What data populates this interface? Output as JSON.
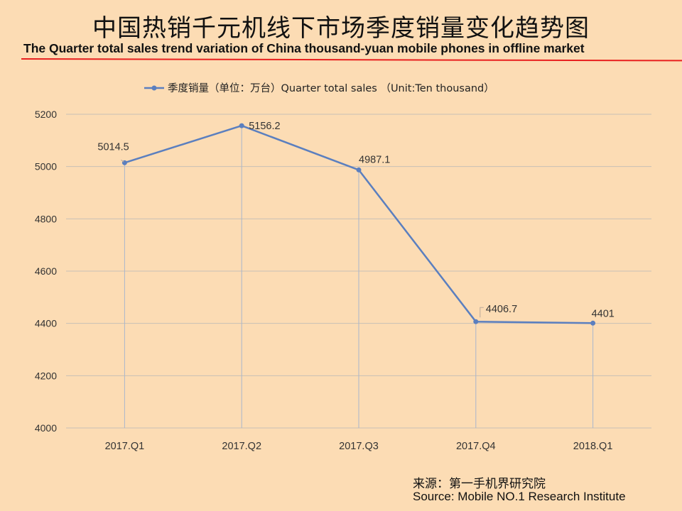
{
  "header": {
    "title_cn": "中国热销千元机线下市场季度销量变化趋势图",
    "title_en": "The Quarter total sales trend variation of China thousand-yuan mobile phones in offline market"
  },
  "source": {
    "cn": "来源：第一手机界研究院",
    "en": "Source: Mobile NO.1 Research Institute"
  },
  "colors": {
    "background": "#fcdcb4",
    "line": "#5b7fbf",
    "grid": "#c8c0b6",
    "rule": "#e8201f"
  },
  "chart_data": {
    "type": "line",
    "title": "",
    "xlabel": "",
    "ylabel": "",
    "categories": [
      "2017.Q1",
      "2017.Q2",
      "2017.Q3",
      "2017.Q4",
      "2018.Q1"
    ],
    "series": [
      {
        "name": "季度销量（单位：万台）Quarter total sales （Unit:Ten thousand）",
        "values": [
          5014.5,
          5156.2,
          4987.1,
          4406.7,
          4401
        ],
        "labels": [
          "5014.5",
          "5156.2",
          "4987.1",
          "4406.7",
          "4401"
        ]
      }
    ],
    "ylim": [
      4000,
      5200
    ],
    "yticks": [
      "4000",
      "4200",
      "4400",
      "4600",
      "4800",
      "5000",
      "5200"
    ],
    "grid": true,
    "legend_position": "top-center"
  }
}
